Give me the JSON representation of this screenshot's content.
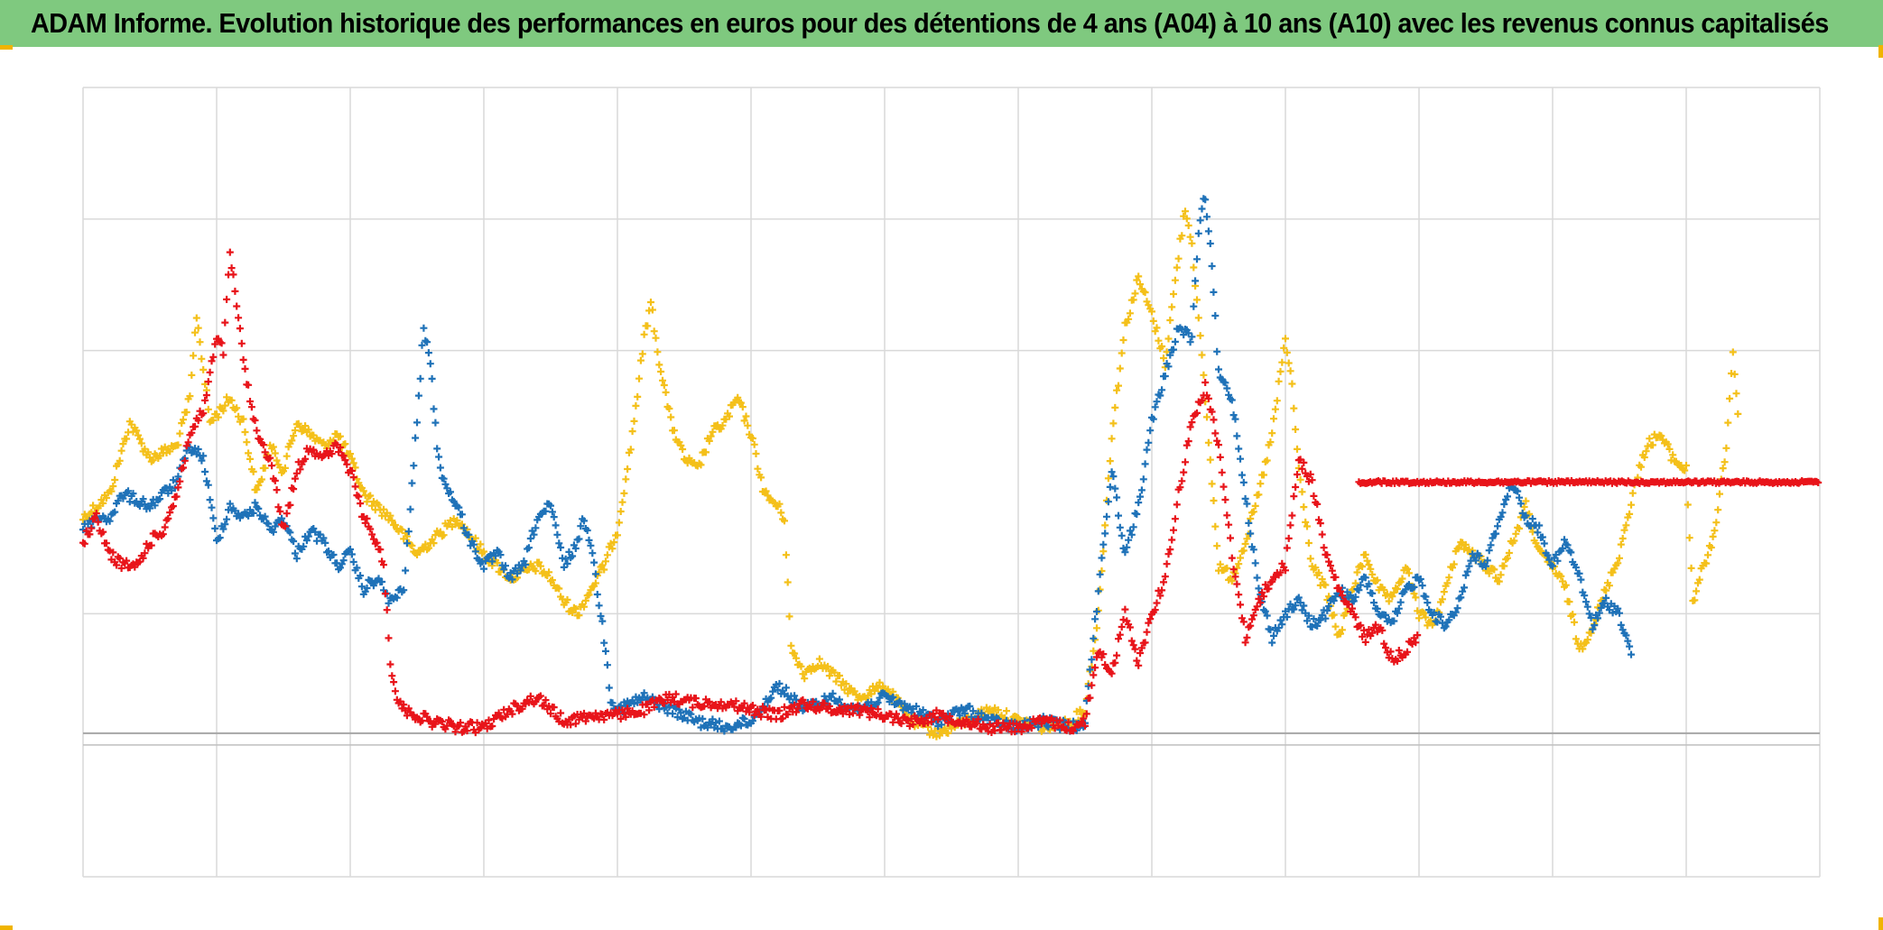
{
  "header": {
    "title": "ADAM Informe. Evolution historique des performances en euros pour des détentions de 4 ans (A04) à 10 ans (A10) avec les revenus connus capitalisés"
  },
  "colors": {
    "title_background": "#7fc97f",
    "corner_accent": "#f0b400"
  },
  "chart_data": {
    "type": "scatter",
    "title": "",
    "xlabel": "",
    "ylabel": "",
    "marker": "plus",
    "xlim": [
      0,
      13
    ],
    "ylim": [
      -1.2,
      5.4
    ],
    "baseline_y": 0,
    "grid": true,
    "legend": "none",
    "x_grid_step": 1,
    "y_grid_values": [
      -1.2,
      1,
      3.2,
      4.3,
      5.4
    ],
    "series": [
      {
        "color": "#f4c01a",
        "values": [
          [
            0,
            1.8
          ],
          [
            0.2,
            2
          ],
          [
            0.35,
            2.6
          ],
          [
            0.5,
            2.3
          ],
          [
            0.7,
            2.4
          ],
          [
            0.8,
            2.8
          ],
          [
            0.85,
            3.5
          ],
          [
            0.95,
            2.6
          ],
          [
            1.1,
            2.8
          ],
          [
            1.2,
            2.6
          ],
          [
            1.3,
            2
          ],
          [
            1.4,
            2.4
          ],
          [
            1.5,
            2.2
          ],
          [
            1.6,
            2.6
          ],
          [
            1.8,
            2.4
          ],
          [
            1.9,
            2.5
          ],
          [
            2.0,
            2.3
          ],
          [
            2.1,
            2
          ],
          [
            2.3,
            1.8
          ],
          [
            2.5,
            1.5
          ],
          [
            2.6,
            1.6
          ],
          [
            2.8,
            1.8
          ],
          [
            3.0,
            1.5
          ],
          [
            3.2,
            1.3
          ],
          [
            3.4,
            1.4
          ],
          [
            3.5,
            1.3
          ],
          [
            3.6,
            1.1
          ],
          [
            3.7,
            1
          ],
          [
            3.8,
            1.2
          ],
          [
            3.9,
            1.4
          ],
          [
            4.0,
            1.7
          ],
          [
            4.1,
            2.4
          ],
          [
            4.2,
            3.3
          ],
          [
            4.25,
            3.6
          ],
          [
            4.3,
            3.2
          ],
          [
            4.4,
            2.6
          ],
          [
            4.5,
            2.3
          ],
          [
            4.6,
            2.2
          ],
          [
            4.7,
            2.5
          ],
          [
            4.8,
            2.6
          ],
          [
            4.9,
            2.8
          ],
          [
            5.0,
            2.5
          ],
          [
            5.1,
            2
          ],
          [
            5.2,
            1.9
          ],
          [
            5.25,
            1.8
          ],
          [
            5.3,
            0.7
          ],
          [
            5.4,
            0.5
          ],
          [
            5.5,
            0.6
          ],
          [
            5.6,
            0.5
          ],
          [
            5.8,
            0.3
          ],
          [
            6.0,
            0.4
          ],
          [
            6.2,
            0.1
          ],
          [
            6.4,
            0
          ],
          [
            6.6,
            0.1
          ],
          [
            6.8,
            0.2
          ],
          [
            7.0,
            0.1
          ],
          [
            7.2,
            0.05
          ],
          [
            7.4,
            0.1
          ],
          [
            7.5,
            0.2
          ],
          [
            7.6,
            1
          ],
          [
            7.7,
            2.5
          ],
          [
            7.8,
            3.4
          ],
          [
            7.9,
            3.8
          ],
          [
            8.0,
            3.5
          ],
          [
            8.1,
            3.1
          ],
          [
            8.2,
            4.0
          ],
          [
            8.25,
            4.4
          ],
          [
            8.3,
            4.1
          ],
          [
            8.4,
            2.8
          ],
          [
            8.5,
            1.4
          ],
          [
            8.6,
            1.3
          ],
          [
            8.7,
            1.6
          ],
          [
            8.8,
            2.0
          ],
          [
            8.9,
            2.5
          ],
          [
            9.0,
            3.3
          ],
          [
            9.05,
            2.9
          ],
          [
            9.1,
            2.2
          ],
          [
            9.2,
            1.4
          ],
          [
            9.3,
            1.2
          ],
          [
            9.4,
            0.8
          ],
          [
            9.5,
            1.2
          ],
          [
            9.6,
            1.5
          ],
          [
            9.7,
            1.2
          ],
          [
            9.8,
            1.1
          ],
          [
            9.9,
            1.4
          ],
          [
            10.0,
            1
          ],
          [
            10.1,
            0.9
          ],
          [
            10.2,
            1.2
          ],
          [
            10.3,
            1.6
          ],
          [
            10.5,
            1.4
          ],
          [
            10.6,
            1.3
          ],
          [
            10.7,
            1.6
          ],
          [
            10.8,
            1.9
          ],
          [
            10.9,
            1.5
          ],
          [
            11.0,
            1.4
          ],
          [
            11.1,
            1.2
          ],
          [
            11.2,
            0.7
          ],
          [
            11.3,
            0.9
          ],
          [
            11.4,
            1.2
          ],
          [
            11.5,
            1.5
          ],
          [
            11.6,
            2.0
          ],
          [
            11.7,
            2.4
          ],
          [
            11.8,
            2.5
          ],
          [
            11.9,
            2.3
          ],
          [
            12.0,
            2.2
          ],
          [
            12.05,
            1.1
          ],
          [
            12.1,
            1.3
          ],
          [
            12.2,
            1.6
          ],
          [
            12.3,
            2.4
          ],
          [
            12.35,
            3.2
          ],
          [
            12.4,
            2.5
          ]
        ]
      },
      {
        "color": "#1f72b8",
        "values": [
          [
            0,
            1.7
          ],
          [
            0.1,
            1.8
          ],
          [
            0.2,
            1.8
          ],
          [
            0.3,
            2.0
          ],
          [
            0.5,
            1.9
          ],
          [
            0.7,
            2.1
          ],
          [
            0.8,
            2.4
          ],
          [
            0.9,
            2.3
          ],
          [
            1.0,
            1.6
          ],
          [
            1.1,
            1.9
          ],
          [
            1.2,
            1.8
          ],
          [
            1.3,
            1.9
          ],
          [
            1.4,
            1.7
          ],
          [
            1.5,
            1.8
          ],
          [
            1.6,
            1.5
          ],
          [
            1.7,
            1.7
          ],
          [
            1.8,
            1.6
          ],
          [
            1.9,
            1.4
          ],
          [
            2.0,
            1.5
          ],
          [
            2.1,
            1.2
          ],
          [
            2.2,
            1.3
          ],
          [
            2.3,
            1.1
          ],
          [
            2.4,
            1.2
          ],
          [
            2.5,
            2.6
          ],
          [
            2.55,
            3.4
          ],
          [
            2.6,
            3.1
          ],
          [
            2.65,
            2.4
          ],
          [
            2.7,
            2.1
          ],
          [
            2.8,
            1.9
          ],
          [
            2.9,
            1.6
          ],
          [
            3.0,
            1.4
          ],
          [
            3.1,
            1.5
          ],
          [
            3.2,
            1.3
          ],
          [
            3.3,
            1.4
          ],
          [
            3.4,
            1.8
          ],
          [
            3.5,
            1.9
          ],
          [
            3.6,
            1.4
          ],
          [
            3.7,
            1.6
          ],
          [
            3.75,
            1.8
          ],
          [
            3.8,
            1.6
          ],
          [
            3.85,
            1.2
          ],
          [
            3.9,
            0.8
          ],
          [
            3.95,
            0.3
          ],
          [
            4.0,
            0.2
          ],
          [
            4.2,
            0.3
          ],
          [
            4.4,
            0.2
          ],
          [
            4.6,
            0.1
          ],
          [
            4.8,
            0.05
          ],
          [
            5.0,
            0.1
          ],
          [
            5.2,
            0.4
          ],
          [
            5.4,
            0.2
          ],
          [
            5.6,
            0.3
          ],
          [
            5.8,
            0.2
          ],
          [
            6.0,
            0.3
          ],
          [
            6.2,
            0.2
          ],
          [
            6.4,
            0.1
          ],
          [
            6.6,
            0.2
          ],
          [
            6.8,
            0.1
          ],
          [
            7.0,
            0.05
          ],
          [
            7.2,
            0.1
          ],
          [
            7.4,
            0.05
          ],
          [
            7.5,
            0.1
          ],
          [
            7.6,
            1.2
          ],
          [
            7.7,
            2.2
          ],
          [
            7.8,
            1.5
          ],
          [
            7.9,
            1.9
          ],
          [
            8.0,
            2.6
          ],
          [
            8.1,
            3.0
          ],
          [
            8.2,
            3.4
          ],
          [
            8.3,
            3.3
          ],
          [
            8.35,
            4.2
          ],
          [
            8.4,
            4.5
          ],
          [
            8.45,
            3.9
          ],
          [
            8.5,
            3.0
          ],
          [
            8.6,
            2.8
          ],
          [
            8.7,
            2.0
          ],
          [
            8.8,
            1.2
          ],
          [
            8.9,
            0.8
          ],
          [
            9.0,
            1.0
          ],
          [
            9.1,
            1.1
          ],
          [
            9.2,
            0.9
          ],
          [
            9.3,
            1.0
          ],
          [
            9.4,
            1.2
          ],
          [
            9.5,
            1.1
          ],
          [
            9.6,
            1.3
          ],
          [
            9.7,
            1.0
          ],
          [
            9.8,
            0.9
          ],
          [
            9.9,
            1.2
          ],
          [
            10.0,
            1.3
          ],
          [
            10.1,
            1.0
          ],
          [
            10.2,
            0.9
          ],
          [
            10.3,
            1.1
          ],
          [
            10.4,
            1.5
          ],
          [
            10.5,
            1.4
          ],
          [
            10.6,
            1.8
          ],
          [
            10.7,
            2.1
          ],
          [
            10.8,
            1.8
          ],
          [
            10.9,
            1.7
          ],
          [
            11.0,
            1.4
          ],
          [
            11.1,
            1.6
          ],
          [
            11.2,
            1.3
          ],
          [
            11.3,
            0.9
          ],
          [
            11.4,
            1.1
          ],
          [
            11.5,
            1.0
          ],
          [
            11.6,
            0.6
          ]
        ]
      },
      {
        "color": "#e8141a",
        "values": [
          [
            0,
            1.6
          ],
          [
            0.1,
            1.8
          ],
          [
            0.2,
            1.5
          ],
          [
            0.3,
            1.4
          ],
          [
            0.4,
            1.4
          ],
          [
            0.5,
            1.6
          ],
          [
            0.6,
            1.7
          ],
          [
            0.7,
            2.0
          ],
          [
            0.8,
            2.5
          ],
          [
            0.9,
            2.7
          ],
          [
            1.0,
            3.3
          ],
          [
            1.05,
            3.2
          ],
          [
            1.1,
            4.0
          ],
          [
            1.15,
            3.6
          ],
          [
            1.2,
            3.1
          ],
          [
            1.3,
            2.5
          ],
          [
            1.4,
            2.3
          ],
          [
            1.5,
            1.7
          ],
          [
            1.6,
            2.2
          ],
          [
            1.7,
            2.4
          ],
          [
            1.8,
            2.3
          ],
          [
            1.9,
            2.4
          ],
          [
            2.0,
            2.2
          ],
          [
            2.1,
            1.8
          ],
          [
            2.2,
            1.6
          ],
          [
            2.25,
            1.4
          ],
          [
            2.3,
            0.6
          ],
          [
            2.35,
            0.3
          ],
          [
            2.4,
            0.2
          ],
          [
            2.6,
            0.1
          ],
          [
            2.8,
            0.05
          ],
          [
            3.0,
            0.05
          ],
          [
            3.2,
            0.2
          ],
          [
            3.4,
            0.3
          ],
          [
            3.6,
            0.1
          ],
          [
            3.8,
            0.15
          ],
          [
            4.0,
            0.15
          ],
          [
            4.2,
            0.2
          ],
          [
            4.4,
            0.3
          ],
          [
            4.6,
            0.25
          ],
          [
            4.8,
            0.25
          ],
          [
            5.0,
            0.2
          ],
          [
            5.2,
            0.15
          ],
          [
            5.4,
            0.25
          ],
          [
            5.6,
            0.2
          ],
          [
            5.8,
            0.2
          ],
          [
            6.0,
            0.15
          ],
          [
            6.2,
            0.1
          ],
          [
            6.4,
            0.15
          ],
          [
            6.6,
            0.1
          ],
          [
            6.8,
            0.05
          ],
          [
            7.0,
            0.05
          ],
          [
            7.2,
            0.1
          ],
          [
            7.4,
            0.05
          ],
          [
            7.5,
            0.1
          ],
          [
            7.6,
            0.7
          ],
          [
            7.7,
            0.5
          ],
          [
            7.8,
            1.0
          ],
          [
            7.9,
            0.6
          ],
          [
            8.0,
            1.0
          ],
          [
            8.1,
            1.3
          ],
          [
            8.2,
            2.0
          ],
          [
            8.3,
            2.6
          ],
          [
            8.4,
            2.9
          ],
          [
            8.5,
            2.4
          ],
          [
            8.6,
            1.5
          ],
          [
            8.7,
            0.8
          ],
          [
            8.8,
            1.1
          ],
          [
            8.9,
            1.3
          ],
          [
            9.0,
            1.4
          ],
          [
            9.1,
            2.3
          ],
          [
            9.2,
            2.1
          ],
          [
            9.3,
            1.5
          ],
          [
            9.4,
            1.2
          ],
          [
            9.5,
            1.0
          ],
          [
            9.6,
            0.8
          ],
          [
            9.7,
            0.9
          ],
          [
            9.8,
            0.6
          ],
          [
            9.9,
            0.7
          ],
          [
            10.0,
            0.8
          ]
        ]
      },
      {
        "color": "#e8141a",
        "values": [
          [
            9.55,
            2.1
          ],
          [
            13,
            2.1
          ]
        ]
      }
    ]
  }
}
